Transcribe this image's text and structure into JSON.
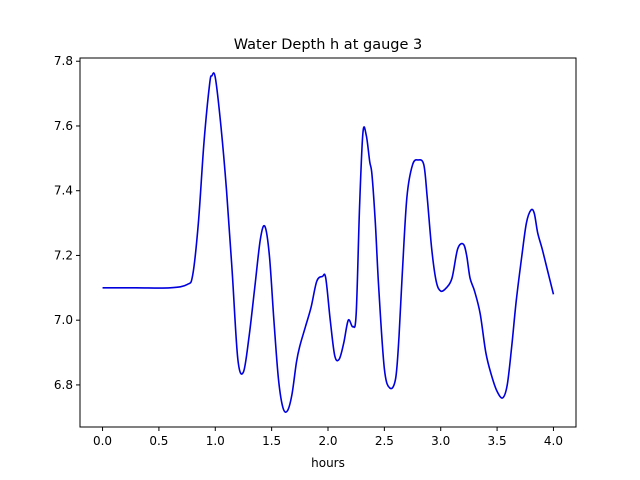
{
  "chart_data": {
    "type": "line",
    "title": "Water Depth h at gauge 3",
    "xlabel": "hours",
    "ylabel": "",
    "xlim": [
      -0.2,
      4.2
    ],
    "ylim": [
      6.67,
      7.81
    ],
    "xticks": [
      0.0,
      0.5,
      1.0,
      1.5,
      2.0,
      2.5,
      3.0,
      3.5,
      4.0
    ],
    "xtick_labels": [
      "0.0",
      "0.5",
      "1.0",
      "1.5",
      "2.0",
      "2.5",
      "3.0",
      "3.5",
      "4.0"
    ],
    "yticks": [
      6.8,
      7.0,
      7.2,
      7.4,
      7.6,
      7.8
    ],
    "ytick_labels": [
      "6.8",
      "7.0",
      "7.2",
      "7.4",
      "7.6",
      "7.8"
    ],
    "grid": false,
    "series": [
      {
        "color": "#0000dd",
        "x": [
          0.0,
          0.3,
          0.6,
          0.75,
          0.8,
          0.85,
          0.9,
          0.95,
          0.97,
          1.0,
          1.05,
          1.1,
          1.15,
          1.2,
          1.25,
          1.3,
          1.35,
          1.4,
          1.44,
          1.48,
          1.52,
          1.56,
          1.6,
          1.64,
          1.68,
          1.72,
          1.75,
          1.8,
          1.85,
          1.9,
          1.95,
          1.98,
          2.02,
          2.06,
          2.1,
          2.14,
          2.18,
          2.22,
          2.25,
          2.28,
          2.31,
          2.34,
          2.37,
          2.39,
          2.42,
          2.45,
          2.5,
          2.55,
          2.6,
          2.63,
          2.66,
          2.7,
          2.75,
          2.8,
          2.85,
          2.88,
          2.92,
          2.96,
          3.0,
          3.05,
          3.1,
          3.15,
          3.2,
          3.23,
          3.26,
          3.3,
          3.35,
          3.4,
          3.45,
          3.5,
          3.55,
          3.59,
          3.63,
          3.67,
          3.72,
          3.76,
          3.8,
          3.83,
          3.86,
          3.9,
          3.95,
          4.0
        ],
        "y": [
          7.1,
          7.1,
          7.1,
          7.11,
          7.14,
          7.3,
          7.55,
          7.73,
          7.755,
          7.75,
          7.6,
          7.4,
          7.15,
          6.88,
          6.84,
          6.95,
          7.1,
          7.25,
          7.29,
          7.2,
          7.0,
          6.82,
          6.73,
          6.72,
          6.77,
          6.87,
          6.92,
          6.98,
          7.04,
          7.12,
          7.135,
          7.13,
          7.0,
          6.89,
          6.88,
          6.93,
          7.0,
          6.98,
          7.02,
          7.35,
          7.58,
          7.57,
          7.49,
          7.45,
          7.3,
          7.1,
          6.85,
          6.79,
          6.82,
          6.95,
          7.15,
          7.38,
          7.48,
          7.495,
          7.48,
          7.38,
          7.22,
          7.12,
          7.09,
          7.1,
          7.13,
          7.22,
          7.235,
          7.2,
          7.13,
          7.09,
          7.02,
          6.9,
          6.83,
          6.78,
          6.76,
          6.8,
          6.92,
          7.06,
          7.2,
          7.3,
          7.34,
          7.33,
          7.27,
          7.22,
          7.15,
          7.08
        ]
      }
    ]
  }
}
